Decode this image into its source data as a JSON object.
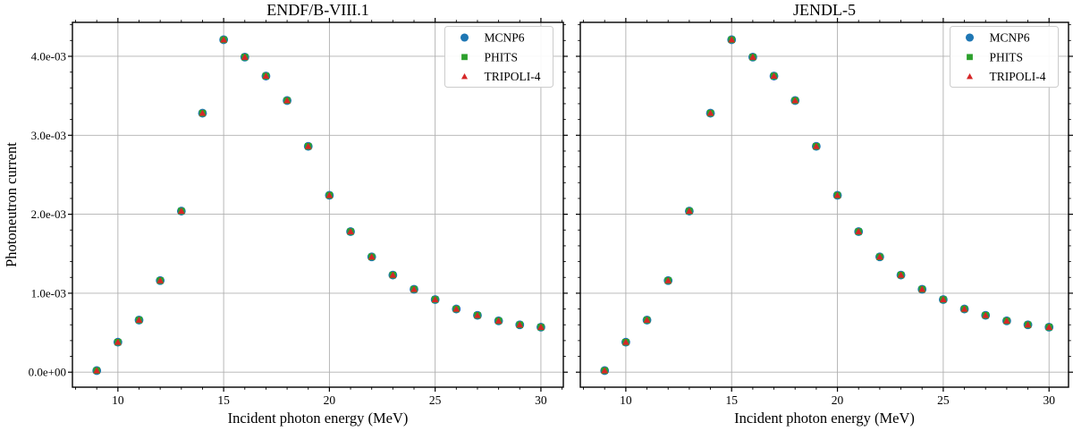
{
  "figure": {
    "ylabel": "Photoneutron current",
    "background": "#ffffff",
    "grid_color": "#b0b0b0",
    "spine_color": "#000000",
    "legend_border_color": "#cccccc",
    "legend_bg": "#ffffff"
  },
  "legend": {
    "position": "upper right",
    "entries": [
      {
        "label": "MCNP6",
        "marker": "circle-icon",
        "color": "#1f77b4"
      },
      {
        "label": "PHITS",
        "marker": "square-icon",
        "color": "#2ca02c"
      },
      {
        "label": "TRIPOLI-4",
        "marker": "triangle-icon",
        "color": "#d62728"
      }
    ]
  },
  "chart_data": [
    {
      "type": "scatter",
      "title": "ENDF/B-VIII.1",
      "xlabel": "Incident photon energy (MeV)",
      "ylabel": "Photoneutron current",
      "x": [
        9,
        10,
        11,
        12,
        13,
        14,
        15,
        16,
        17,
        18,
        19,
        20,
        21,
        22,
        23,
        24,
        25,
        26,
        27,
        28,
        29,
        30
      ],
      "series": [
        {
          "name": "MCNP6",
          "marker": "circle",
          "color": "#1f77b4",
          "values": [
            2e-05,
            0.00038,
            0.00066,
            0.00116,
            0.00204,
            0.00328,
            0.00421,
            0.00399,
            0.00375,
            0.00344,
            0.00286,
            0.00224,
            0.00178,
            0.00146,
            0.00123,
            0.00105,
            0.00092,
            0.0008,
            0.00072,
            0.00065,
            0.0006,
            0.00057
          ]
        },
        {
          "name": "PHITS",
          "marker": "square",
          "color": "#2ca02c",
          "values": [
            2e-05,
            0.00038,
            0.00066,
            0.00116,
            0.00204,
            0.00328,
            0.00421,
            0.00399,
            0.00375,
            0.00344,
            0.00286,
            0.00224,
            0.00178,
            0.00146,
            0.00123,
            0.00105,
            0.00092,
            0.0008,
            0.00072,
            0.00065,
            0.0006,
            0.00057
          ]
        },
        {
          "name": "TRIPOLI-4",
          "marker": "triangle",
          "color": "#d62728",
          "values": [
            2e-05,
            0.00038,
            0.00066,
            0.00116,
            0.00204,
            0.00328,
            0.00421,
            0.00399,
            0.00375,
            0.00344,
            0.00286,
            0.00224,
            0.00178,
            0.00146,
            0.00123,
            0.00105,
            0.00092,
            0.0008,
            0.00072,
            0.00065,
            0.0006,
            0.00057
          ]
        }
      ],
      "xlim": [
        7.85,
        31.06
      ],
      "ylim": [
        -0.00019,
        0.00443
      ],
      "xticks": [
        10,
        15,
        20,
        25,
        30
      ],
      "xtick_labels": [
        "10",
        "15",
        "20",
        "25",
        "30"
      ],
      "yticks": [
        0,
        0.001,
        0.002,
        0.003,
        0.004
      ],
      "ytick_labels": [
        "0.0e+00",
        "1.0e-03",
        "2.0e-03",
        "3.0e-03",
        "4.0e-03"
      ],
      "minor_x_step": 1,
      "minor_y_step": 0.0002,
      "grid": true,
      "legend_position": "upper right"
    },
    {
      "type": "scatter",
      "title": "JENDL-5",
      "xlabel": "Incident photon energy (MeV)",
      "ylabel": "Photoneutron current",
      "x": [
        9,
        10,
        11,
        12,
        13,
        14,
        15,
        16,
        17,
        18,
        19,
        20,
        21,
        22,
        23,
        24,
        25,
        26,
        27,
        28,
        29,
        30
      ],
      "series": [
        {
          "name": "MCNP6",
          "marker": "circle",
          "color": "#1f77b4",
          "values": [
            2e-05,
            0.00038,
            0.00066,
            0.00116,
            0.00204,
            0.00328,
            0.00421,
            0.00399,
            0.00375,
            0.00344,
            0.00286,
            0.00224,
            0.00178,
            0.00146,
            0.00123,
            0.00105,
            0.00092,
            0.0008,
            0.00072,
            0.00065,
            0.0006,
            0.00057
          ]
        },
        {
          "name": "PHITS",
          "marker": "square",
          "color": "#2ca02c",
          "values": [
            2e-05,
            0.00038,
            0.00066,
            0.00116,
            0.00204,
            0.00328,
            0.00421,
            0.00399,
            0.00375,
            0.00344,
            0.00286,
            0.00224,
            0.00178,
            0.00146,
            0.00123,
            0.00105,
            0.00092,
            0.0008,
            0.00072,
            0.00065,
            0.0006,
            0.00057
          ]
        },
        {
          "name": "TRIPOLI-4",
          "marker": "triangle",
          "color": "#d62728",
          "values": [
            2e-05,
            0.00038,
            0.00066,
            0.00116,
            0.00204,
            0.00328,
            0.00421,
            0.00399,
            0.00375,
            0.00344,
            0.00286,
            0.00224,
            0.00178,
            0.00146,
            0.00123,
            0.00105,
            0.00092,
            0.0008,
            0.00072,
            0.00065,
            0.0006,
            0.00057
          ]
        }
      ],
      "xlim": [
        7.85,
        30.92
      ],
      "ylim": [
        -0.00019,
        0.00443
      ],
      "xticks": [
        10,
        15,
        20,
        25,
        30
      ],
      "xtick_labels": [
        "10",
        "15",
        "20",
        "25",
        "30"
      ],
      "yticks": [
        0,
        0.001,
        0.002,
        0.003,
        0.004
      ],
      "ytick_labels": [
        "0.0e+00",
        "1.0e-03",
        "2.0e-03",
        "3.0e-03",
        "4.0e-03"
      ],
      "minor_x_step": 1,
      "minor_y_step": 0.0002,
      "grid": true,
      "legend_position": "upper right"
    }
  ]
}
